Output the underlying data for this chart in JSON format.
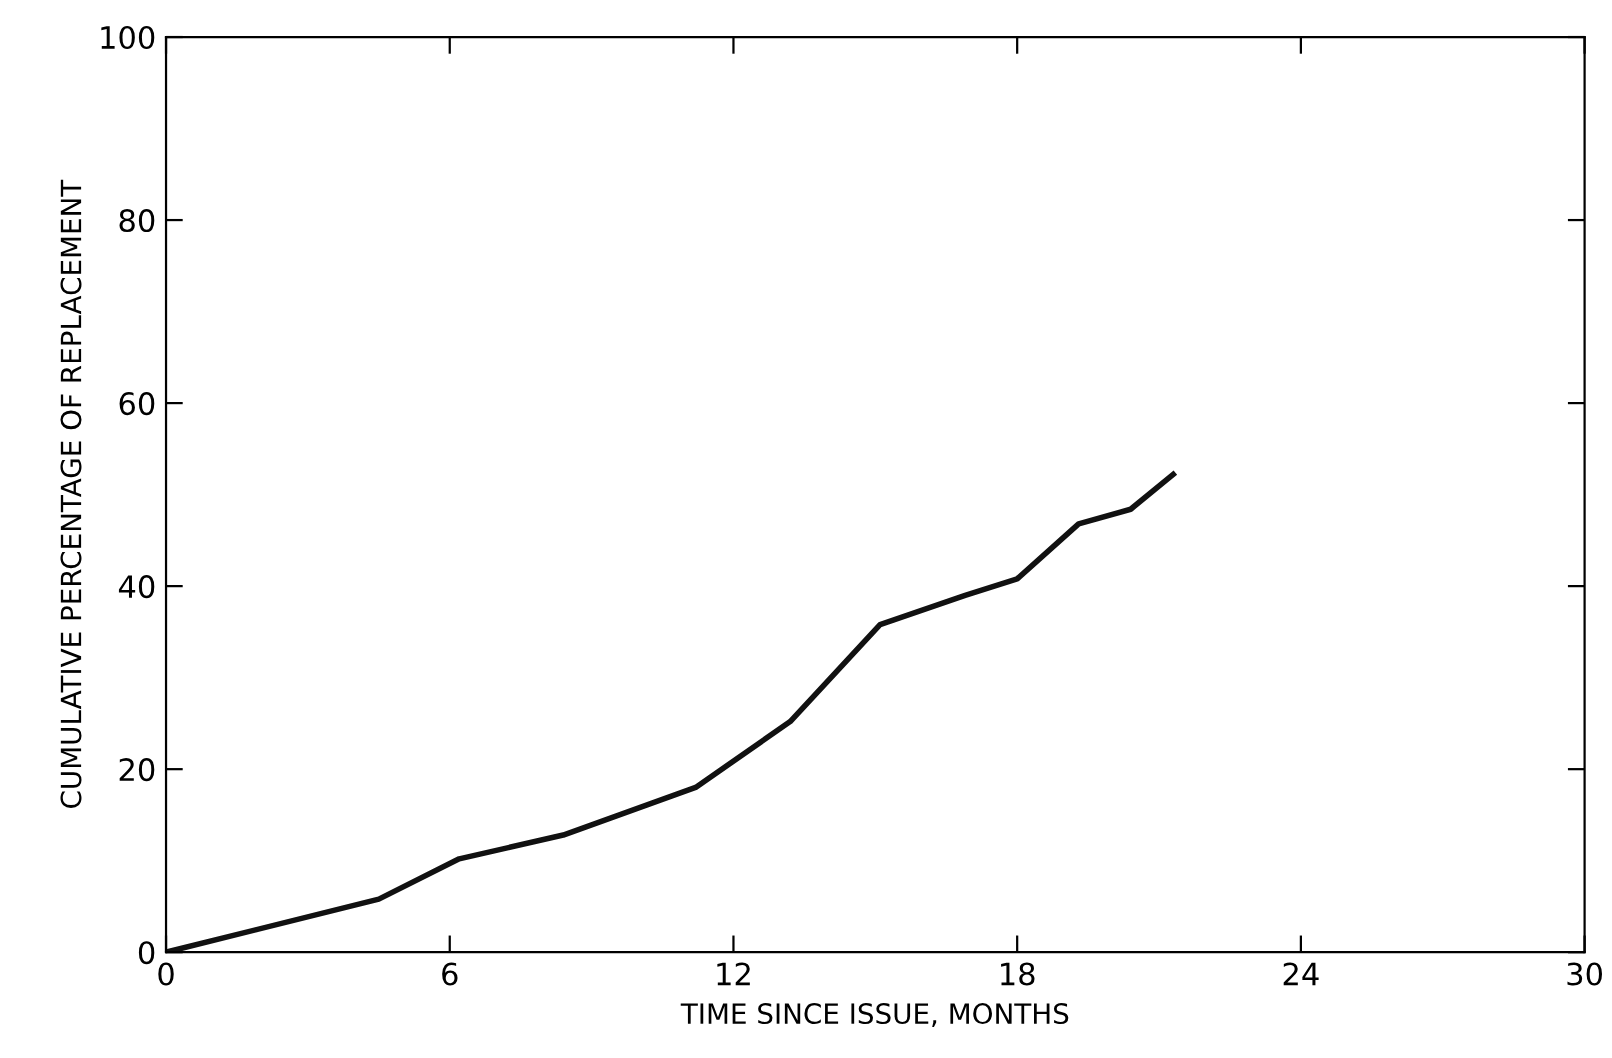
{
  "chart_data": {
    "type": "line",
    "xlabel": "TIME SINCE ISSUE, MONTHS",
    "ylabel": "CUMULATIVE PERCENTAGE OF REPLACEMENT",
    "x": [
      0,
      4.5,
      6.2,
      8.4,
      11.2,
      13.2,
      15.1,
      16.9,
      18.0,
      19.3,
      20.4,
      21.3
    ],
    "series": [
      {
        "color": "#111111",
        "values": [
          0,
          5.8,
          10.2,
          12.8,
          18.0,
          25.2,
          35.8,
          39.0,
          40.8,
          46.8,
          48.4,
          52.2
        ]
      }
    ],
    "xlim": [
      0,
      30
    ],
    "xticks": [
      0,
      6,
      12,
      18,
      24,
      30
    ],
    "ylim": [
      0,
      100
    ],
    "yticks": [
      0,
      20,
      40,
      60,
      80,
      100
    ],
    "grid": false,
    "legend": false,
    "marker": "none",
    "line_style": "solid"
  }
}
